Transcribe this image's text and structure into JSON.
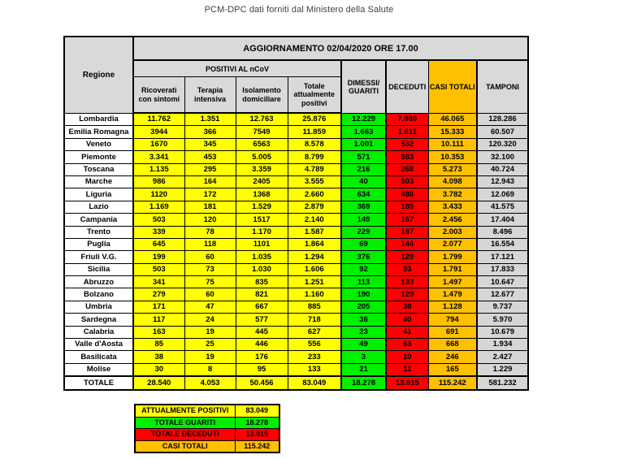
{
  "title": "PCM-DPC dati forniti dal Ministero della Salute",
  "chart_data": {
    "type": "table",
    "update_header": "AGGIORNAMENTO 02/04/2020 ORE 17.00",
    "region_header": "Regione",
    "group_header": "POSITIVI AL nCoV",
    "sub_headers": [
      "Ricoverati con sintomi",
      "Terapia intensiva",
      "Isolamento domiciliare",
      "Totale attualmente positivi"
    ],
    "col_headers": [
      "DIMESSI/\nGUARITI",
      "DECEDUTI",
      "CASI TOTALI",
      "TAMPONI"
    ],
    "rows": [
      {
        "region": "Lombardia",
        "values": [
          "11.762",
          "1.351",
          "12.763",
          "25.876",
          "12.229",
          "7.960",
          "46.065",
          "128.286"
        ]
      },
      {
        "region": "Emilia Romagna",
        "values": [
          "3944",
          "366",
          "7549",
          "11.859",
          "1.663",
          "1.811",
          "15.333",
          "60.507"
        ]
      },
      {
        "region": "Veneto",
        "values": [
          "1670",
          "345",
          "6563",
          "8.578",
          "1.001",
          "532",
          "10.111",
          "120.320"
        ]
      },
      {
        "region": "Piemonte",
        "values": [
          "3.341",
          "453",
          "5.005",
          "8.799",
          "571",
          "983",
          "10.353",
          "32.100"
        ]
      },
      {
        "region": "Toscana",
        "values": [
          "1.135",
          "295",
          "3.359",
          "4.789",
          "216",
          "268",
          "5.273",
          "40.724"
        ]
      },
      {
        "region": "Marche",
        "values": [
          "986",
          "164",
          "2405",
          "3.555",
          "40",
          "503",
          "4.098",
          "12.943"
        ]
      },
      {
        "region": "Liguria",
        "values": [
          "1120",
          "172",
          "1368",
          "2.660",
          "634",
          "488",
          "3.782",
          "12.069"
        ]
      },
      {
        "region": "Lazio",
        "values": [
          "1.169",
          "181",
          "1.529",
          "2.879",
          "369",
          "185",
          "3.433",
          "41.575"
        ]
      },
      {
        "region": "Campania",
        "values": [
          "503",
          "120",
          "1517",
          "2.140",
          "149",
          "167",
          "2.456",
          "17.404"
        ]
      },
      {
        "region": "Trento",
        "values": [
          "339",
          "78",
          "1.170",
          "1.587",
          "229",
          "187",
          "2.003",
          "8.496"
        ]
      },
      {
        "region": "Puglia",
        "values": [
          "645",
          "118",
          "1101",
          "1.864",
          "69",
          "144",
          "2.077",
          "16.554"
        ]
      },
      {
        "region": "Friuli V.G.",
        "values": [
          "199",
          "60",
          "1.035",
          "1.294",
          "376",
          "129",
          "1.799",
          "17.121"
        ]
      },
      {
        "region": "Sicilia",
        "values": [
          "503",
          "73",
          "1.030",
          "1.606",
          "92",
          "93",
          "1.791",
          "17.833"
        ]
      },
      {
        "region": "Abruzzo",
        "values": [
          "341",
          "75",
          "835",
          "1.251",
          "113",
          "133",
          "1.497",
          "10.647"
        ]
      },
      {
        "region": "Bolzano",
        "values": [
          "279",
          "60",
          "821",
          "1.160",
          "190",
          "129",
          "1.479",
          "12.677"
        ]
      },
      {
        "region": "Umbria",
        "values": [
          "171",
          "47",
          "667",
          "885",
          "205",
          "38",
          "1.128",
          "9.737"
        ]
      },
      {
        "region": "Sardegna",
        "values": [
          "117",
          "24",
          "577",
          "718",
          "36",
          "40",
          "794",
          "5.970"
        ]
      },
      {
        "region": "Calabria",
        "values": [
          "163",
          "19",
          "445",
          "627",
          "23",
          "41",
          "691",
          "10.679"
        ]
      },
      {
        "region": "Valle d'Aosta",
        "values": [
          "85",
          "25",
          "446",
          "556",
          "49",
          "63",
          "668",
          "1.934"
        ]
      },
      {
        "region": "Basilicata",
        "values": [
          "38",
          "19",
          "176",
          "233",
          "3",
          "10",
          "246",
          "2.427"
        ]
      },
      {
        "region": "Molise",
        "values": [
          "30",
          "8",
          "95",
          "133",
          "21",
          "11",
          "165",
          "1.229"
        ]
      },
      {
        "region": "TOTALE",
        "values": [
          "28.540",
          "4.053",
          "50.456",
          "83.049",
          "18.278",
          "13.915",
          "115.242",
          "581.232"
        ],
        "is_total": true
      }
    ],
    "summary": [
      {
        "label": "ATTUALMENTE POSITIVI",
        "value": "83.049",
        "color": "#ffff00"
      },
      {
        "label": "TOTALE GUARITI",
        "value": "18.278",
        "color": "#00f000"
      },
      {
        "label": "TOTALE DECEDUTI",
        "value": "13.915",
        "color": "#ff0000"
      },
      {
        "label": "CASI TOTALI",
        "value": "115.242",
        "color": "#ffc000"
      }
    ],
    "colors": {
      "positivi": "#ffff00",
      "guariti": "#00f000",
      "deceduti": "#ff0000",
      "casi_totali": "#ffc000",
      "header_gray": "#d9d9d9",
      "tamponi_gray": "#d6d6d6"
    }
  }
}
